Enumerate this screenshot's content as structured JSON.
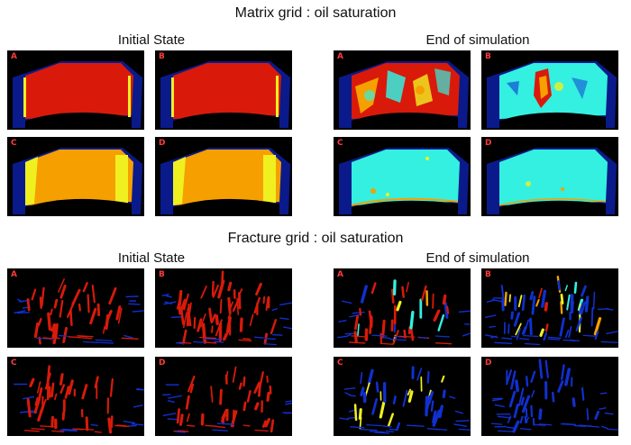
{
  "colors": {
    "label": "#ff3b3b",
    "blue": "#0a1a8a",
    "red": "#d91a0a",
    "orange": "#f5a000",
    "yellow": "#f0f020",
    "cyan": "#33f0e0",
    "frac_blue": "#1030d0",
    "background": "#000000"
  },
  "matrix": {
    "title": "Matrix grid : oil saturation",
    "initial_title": "Initial State",
    "end_title": "End of simulation",
    "labels": [
      "A",
      "B",
      "C",
      "D"
    ]
  },
  "fracture": {
    "title": "Fracture grid : oil saturation",
    "initial_title": "Initial State",
    "end_title": "End of simulation",
    "labels": [
      "A",
      "B",
      "C",
      "D"
    ]
  }
}
